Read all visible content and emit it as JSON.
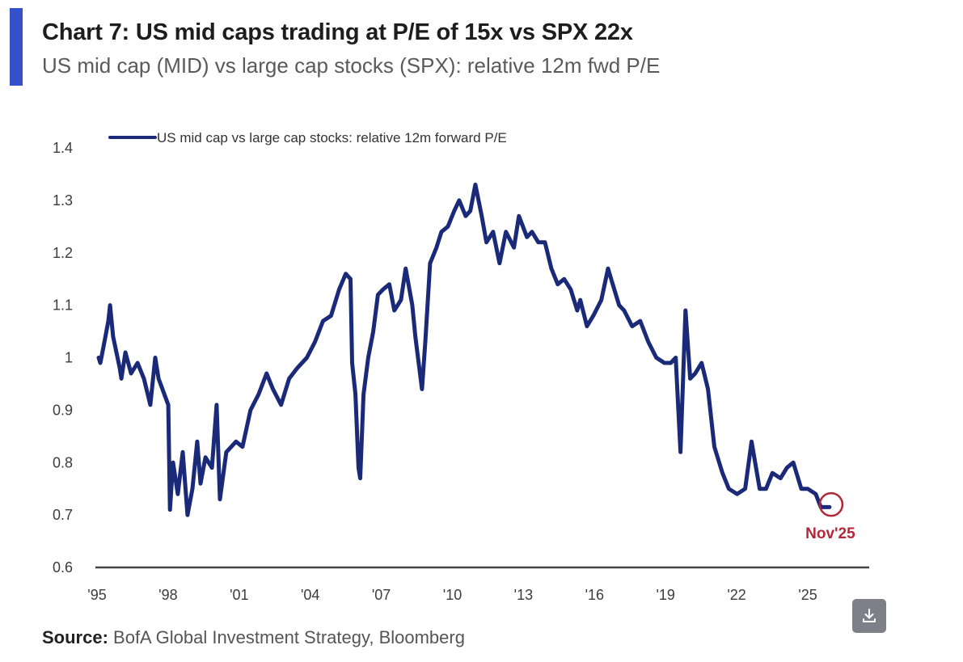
{
  "header": {
    "title": "Chart 7: US mid caps trading at P/E of 15x vs SPX 22x",
    "subtitle": "US mid cap (MID) vs large cap stocks (SPX): relative 12m fwd P/E",
    "accent_color": "#3550c9"
  },
  "footer": {
    "source_label": "Source:",
    "source_text": " BofA Global Investment Strategy, Bloomberg"
  },
  "download_button": {
    "icon": "download-icon",
    "label": "Download"
  },
  "chart_data": {
    "type": "line",
    "title": "Chart 7: US mid caps trading at P/E of 15x vs SPX 22x",
    "subtitle": "US mid cap (MID) vs large cap stocks (SPX): relative 12m fwd P/E",
    "xlabel": "",
    "ylabel": "",
    "xlim": [
      1995,
      2027.7
    ],
    "ylim": [
      0.6,
      1.4
    ],
    "grid": false,
    "legend_position": "top",
    "x_ticks": [
      1995,
      1998,
      2001,
      2004,
      2007,
      2010,
      2013,
      2016,
      2019,
      2022,
      2025
    ],
    "x_tick_labels": [
      "'95",
      "'98",
      "'01",
      "'04",
      "'07",
      "'10",
      "'13",
      "'16",
      "'19",
      "'22",
      "'25"
    ],
    "y_ticks": [
      0.6,
      0.7,
      0.8,
      0.9,
      1.0,
      1.1,
      1.2,
      1.3,
      1.4
    ],
    "y_tick_labels": [
      "0.6",
      "0.7",
      "0.8",
      "0.9",
      "1",
      "1.1",
      "1.2",
      "1.3",
      "1.4"
    ],
    "series": [
      {
        "name": "US mid cap vs large cap stocks: relative 12m forward P/E",
        "color": "#1b2a78",
        "x": [
          1995.0,
          1995.07,
          1995.2,
          1995.41,
          1995.48,
          1995.61,
          1995.89,
          1995.96,
          1996.13,
          1996.37,
          1996.64,
          1996.91,
          1997.18,
          1997.39,
          1997.53,
          1997.94,
          1998.01,
          1998.14,
          1998.34,
          1998.55,
          1998.75,
          1998.96,
          1999.16,
          1999.3,
          1999.51,
          1999.78,
          1999.98,
          2000.12,
          2000.39,
          2000.8,
          2001.07,
          2001.41,
          2001.75,
          2002.09,
          2002.36,
          2002.7,
          2003.04,
          2003.38,
          2003.79,
          2004.13,
          2004.47,
          2004.81,
          2005.15,
          2005.43,
          2005.63,
          2005.7,
          2005.84,
          2005.97,
          2006.04,
          2006.18,
          2006.38,
          2006.59,
          2006.79,
          2007.0,
          2007.27,
          2007.48,
          2007.76,
          2007.96,
          2008.24,
          2008.37,
          2008.65,
          2008.79,
          2008.99,
          2009.26,
          2009.47,
          2009.74,
          2010.01,
          2010.22,
          2010.49,
          2010.69,
          2010.9,
          2011.17,
          2011.37,
          2011.65,
          2011.92,
          2012.19,
          2012.53,
          2012.74,
          2013.08,
          2013.29,
          2013.56,
          2013.84,
          2014.11,
          2014.38,
          2014.65,
          2014.93,
          2015.2,
          2015.33,
          2015.61,
          2015.88,
          2016.22,
          2016.5,
          2016.7,
          2016.97,
          2017.18,
          2017.52,
          2017.86,
          2018.2,
          2018.54,
          2018.88,
          2019.15,
          2019.36,
          2019.56,
          2019.77,
          2019.97,
          2020.18,
          2020.45,
          2020.72,
          2020.99,
          2021.33,
          2021.6,
          2021.95,
          2022.29,
          2022.56,
          2022.9,
          2023.17,
          2023.44,
          2023.78,
          2024.05,
          2024.32,
          2024.66,
          2024.93,
          2025.27,
          2025.48,
          2025.68,
          2025.85
        ],
        "values": [
          1.0,
          0.99,
          1.02,
          1.07,
          1.1,
          1.04,
          0.98,
          0.96,
          1.01,
          0.97,
          0.99,
          0.96,
          0.91,
          1.0,
          0.96,
          0.91,
          0.71,
          0.8,
          0.74,
          0.82,
          0.7,
          0.75,
          0.84,
          0.76,
          0.81,
          0.79,
          0.91,
          0.73,
          0.82,
          0.84,
          0.83,
          0.9,
          0.93,
          0.97,
          0.94,
          0.91,
          0.96,
          0.98,
          1.0,
          1.03,
          1.07,
          1.08,
          1.13,
          1.16,
          1.15,
          0.99,
          0.93,
          0.79,
          0.77,
          0.93,
          1.0,
          1.05,
          1.12,
          1.13,
          1.14,
          1.09,
          1.11,
          1.17,
          1.1,
          1.04,
          0.94,
          1.03,
          1.18,
          1.21,
          1.24,
          1.25,
          1.28,
          1.3,
          1.27,
          1.28,
          1.33,
          1.27,
          1.22,
          1.24,
          1.18,
          1.24,
          1.21,
          1.27,
          1.23,
          1.24,
          1.22,
          1.22,
          1.17,
          1.14,
          1.15,
          1.13,
          1.09,
          1.11,
          1.06,
          1.08,
          1.11,
          1.17,
          1.14,
          1.1,
          1.09,
          1.06,
          1.07,
          1.03,
          1.0,
          0.99,
          0.99,
          1.0,
          0.82,
          1.09,
          0.96,
          0.97,
          0.99,
          0.94,
          0.83,
          0.78,
          0.75,
          0.74,
          0.75,
          0.84,
          0.75,
          0.75,
          0.78,
          0.77,
          0.79,
          0.8,
          0.75,
          0.75,
          0.74,
          0.715,
          0.715,
          0.715
        ]
      }
    ],
    "annotations": [
      {
        "type": "circle-marker",
        "x": 2025.85,
        "y": 0.72,
        "label": "Nov'25",
        "color": "#b0283a"
      }
    ],
    "legend": [
      "US mid cap vs large cap stocks: relative 12m forward P/E"
    ]
  }
}
